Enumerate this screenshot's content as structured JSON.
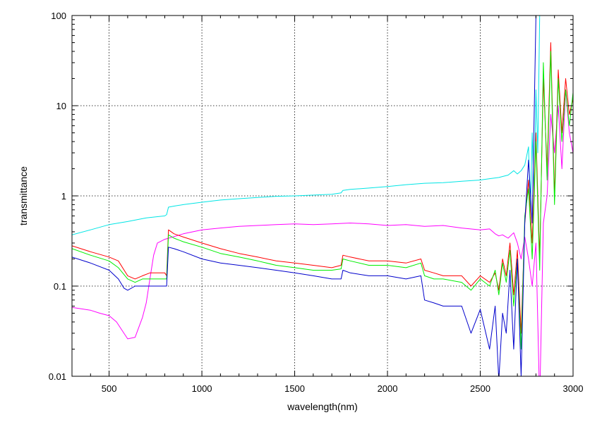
{
  "chart_data": {
    "type": "line",
    "xlabel": "wavelength(nm)",
    "ylabel": "transmittance",
    "xlim": [
      300,
      3000
    ],
    "ylim": [
      0.01,
      100
    ],
    "yscale": "log",
    "grid": true,
    "x_ticks": [
      500,
      1000,
      1500,
      2000,
      2500,
      3000
    ],
    "x_tick_labels": [
      "500",
      "1000",
      "1500",
      "2000",
      "2500",
      "3000"
    ],
    "y_ticks": [
      0.01,
      0.1,
      1,
      10,
      100
    ],
    "y_tick_labels": [
      "0.01",
      "0.1",
      "1",
      "10",
      "100"
    ],
    "series": [
      {
        "color": "#00e5e5",
        "x": [
          300,
          400,
          500,
          600,
          700,
          800,
          810,
          820,
          850,
          900,
          1000,
          1100,
          1200,
          1300,
          1400,
          1500,
          1600,
          1700,
          1750,
          1760,
          1800,
          1900,
          2000,
          2100,
          2200,
          2300,
          2400,
          2500,
          2550,
          2600,
          2650,
          2680,
          2700,
          2720,
          2740,
          2760,
          2770,
          2780,
          2790,
          2800,
          2810,
          2820
        ],
        "y": [
          0.37,
          0.42,
          0.48,
          0.52,
          0.57,
          0.6,
          0.62,
          0.75,
          0.77,
          0.8,
          0.85,
          0.9,
          0.93,
          0.96,
          0.99,
          1.0,
          1.02,
          1.04,
          1.08,
          1.15,
          1.18,
          1.22,
          1.27,
          1.33,
          1.38,
          1.4,
          1.45,
          1.5,
          1.55,
          1.6,
          1.7,
          1.9,
          1.75,
          1.9,
          2.2,
          3.5,
          0.6,
          5.0,
          1.0,
          15,
          3.0,
          100
        ]
      },
      {
        "color": "#ff00ff",
        "x": [
          300,
          400,
          450,
          500,
          540,
          580,
          600,
          640,
          660,
          680,
          700,
          720,
          740,
          760,
          800,
          900,
          1000,
          1100,
          1200,
          1300,
          1400,
          1500,
          1600,
          1700,
          1800,
          1900,
          2000,
          2100,
          2200,
          2300,
          2400,
          2500,
          2550,
          2580,
          2600,
          2620,
          2650,
          2680,
          2700,
          2720,
          2740,
          2760,
          2780,
          2800,
          2820,
          2840,
          2860,
          2880,
          2900,
          2920,
          2940,
          2960,
          2980,
          3000
        ],
        "y": [
          0.058,
          0.054,
          0.05,
          0.047,
          0.04,
          0.03,
          0.026,
          0.027,
          0.035,
          0.045,
          0.065,
          0.12,
          0.22,
          0.3,
          0.33,
          0.38,
          0.42,
          0.44,
          0.46,
          0.47,
          0.48,
          0.49,
          0.48,
          0.49,
          0.5,
          0.49,
          0.47,
          0.48,
          0.46,
          0.47,
          0.44,
          0.42,
          0.43,
          0.38,
          0.36,
          0.37,
          0.34,
          0.39,
          0.3,
          0.2,
          0.35,
          0.2,
          0.1,
          0.3,
          0.005,
          0.5,
          1.0,
          8.0,
          3.0,
          10,
          2.0,
          15,
          5.0,
          3.0
        ]
      },
      {
        "color": "#ff0000",
        "x": [
          300,
          400,
          500,
          550,
          600,
          640,
          680,
          720,
          760,
          800,
          810,
          820,
          850,
          900,
          1000,
          1100,
          1200,
          1300,
          1400,
          1500,
          1600,
          1700,
          1750,
          1760,
          1800,
          1900,
          2000,
          2100,
          2180,
          2200,
          2250,
          2300,
          2400,
          2450,
          2500,
          2550,
          2580,
          2600,
          2620,
          2640,
          2660,
          2680,
          2700,
          2720,
          2740,
          2760,
          2780,
          2800,
          2820,
          2840,
          2860,
          2880,
          2900,
          2920,
          2940,
          2960,
          2980,
          3000
        ],
        "y": [
          0.28,
          0.24,
          0.21,
          0.19,
          0.13,
          0.12,
          0.13,
          0.14,
          0.14,
          0.14,
          0.13,
          0.42,
          0.38,
          0.35,
          0.3,
          0.26,
          0.23,
          0.21,
          0.19,
          0.18,
          0.17,
          0.16,
          0.17,
          0.22,
          0.21,
          0.19,
          0.19,
          0.18,
          0.2,
          0.15,
          0.14,
          0.13,
          0.13,
          0.1,
          0.13,
          0.11,
          0.14,
          0.09,
          0.2,
          0.13,
          0.3,
          0.08,
          0.25,
          0.03,
          0.5,
          1.5,
          0.3,
          5.0,
          0.2,
          20,
          2.0,
          50,
          1.0,
          25,
          5.0,
          20,
          8.0,
          12
        ]
      },
      {
        "color": "#00ee00",
        "x": [
          300,
          400,
          500,
          550,
          600,
          640,
          680,
          720,
          760,
          800,
          810,
          820,
          850,
          900,
          1000,
          1100,
          1200,
          1300,
          1400,
          1500,
          1600,
          1700,
          1750,
          1760,
          1800,
          1900,
          2000,
          2100,
          2180,
          2200,
          2250,
          2300,
          2400,
          2450,
          2500,
          2550,
          2580,
          2600,
          2620,
          2640,
          2660,
          2680,
          2700,
          2720,
          2740,
          2760,
          2780,
          2800,
          2820,
          2840,
          2860,
          2880,
          2900,
          2920,
          2940,
          2960,
          2980,
          3000
        ],
        "y": [
          0.26,
          0.22,
          0.19,
          0.16,
          0.12,
          0.11,
          0.12,
          0.12,
          0.12,
          0.12,
          0.12,
          0.37,
          0.34,
          0.31,
          0.27,
          0.23,
          0.21,
          0.19,
          0.17,
          0.16,
          0.15,
          0.15,
          0.155,
          0.2,
          0.19,
          0.17,
          0.17,
          0.16,
          0.18,
          0.13,
          0.12,
          0.12,
          0.11,
          0.09,
          0.12,
          0.1,
          0.15,
          0.08,
          0.18,
          0.11,
          0.25,
          0.06,
          0.2,
          0.02,
          0.6,
          1.2,
          0.2,
          4.0,
          0.15,
          30,
          1.5,
          40,
          0.8,
          20,
          4.0,
          15,
          6.0,
          14
        ]
      },
      {
        "color": "#0000cc",
        "x": [
          300,
          400,
          500,
          550,
          580,
          600,
          640,
          680,
          720,
          760,
          800,
          810,
          820,
          850,
          900,
          1000,
          1100,
          1200,
          1300,
          1400,
          1500,
          1600,
          1700,
          1750,
          1760,
          1800,
          1900,
          2000,
          2100,
          2180,
          2200,
          2250,
          2300,
          2400,
          2450,
          2500,
          2550,
          2580,
          2600,
          2620,
          2640,
          2660,
          2680,
          2700,
          2720,
          2740,
          2760,
          2780,
          2800
        ],
        "y": [
          0.21,
          0.18,
          0.15,
          0.12,
          0.095,
          0.09,
          0.1,
          0.1,
          0.1,
          0.1,
          0.1,
          0.1,
          0.27,
          0.26,
          0.24,
          0.2,
          0.18,
          0.17,
          0.16,
          0.15,
          0.14,
          0.13,
          0.12,
          0.12,
          0.15,
          0.14,
          0.13,
          0.13,
          0.12,
          0.13,
          0.07,
          0.065,
          0.06,
          0.06,
          0.03,
          0.055,
          0.02,
          0.06,
          0.009,
          0.05,
          0.03,
          0.15,
          0.02,
          0.2,
          0.01,
          0.5,
          2.5,
          0.5,
          100
        ]
      }
    ]
  }
}
